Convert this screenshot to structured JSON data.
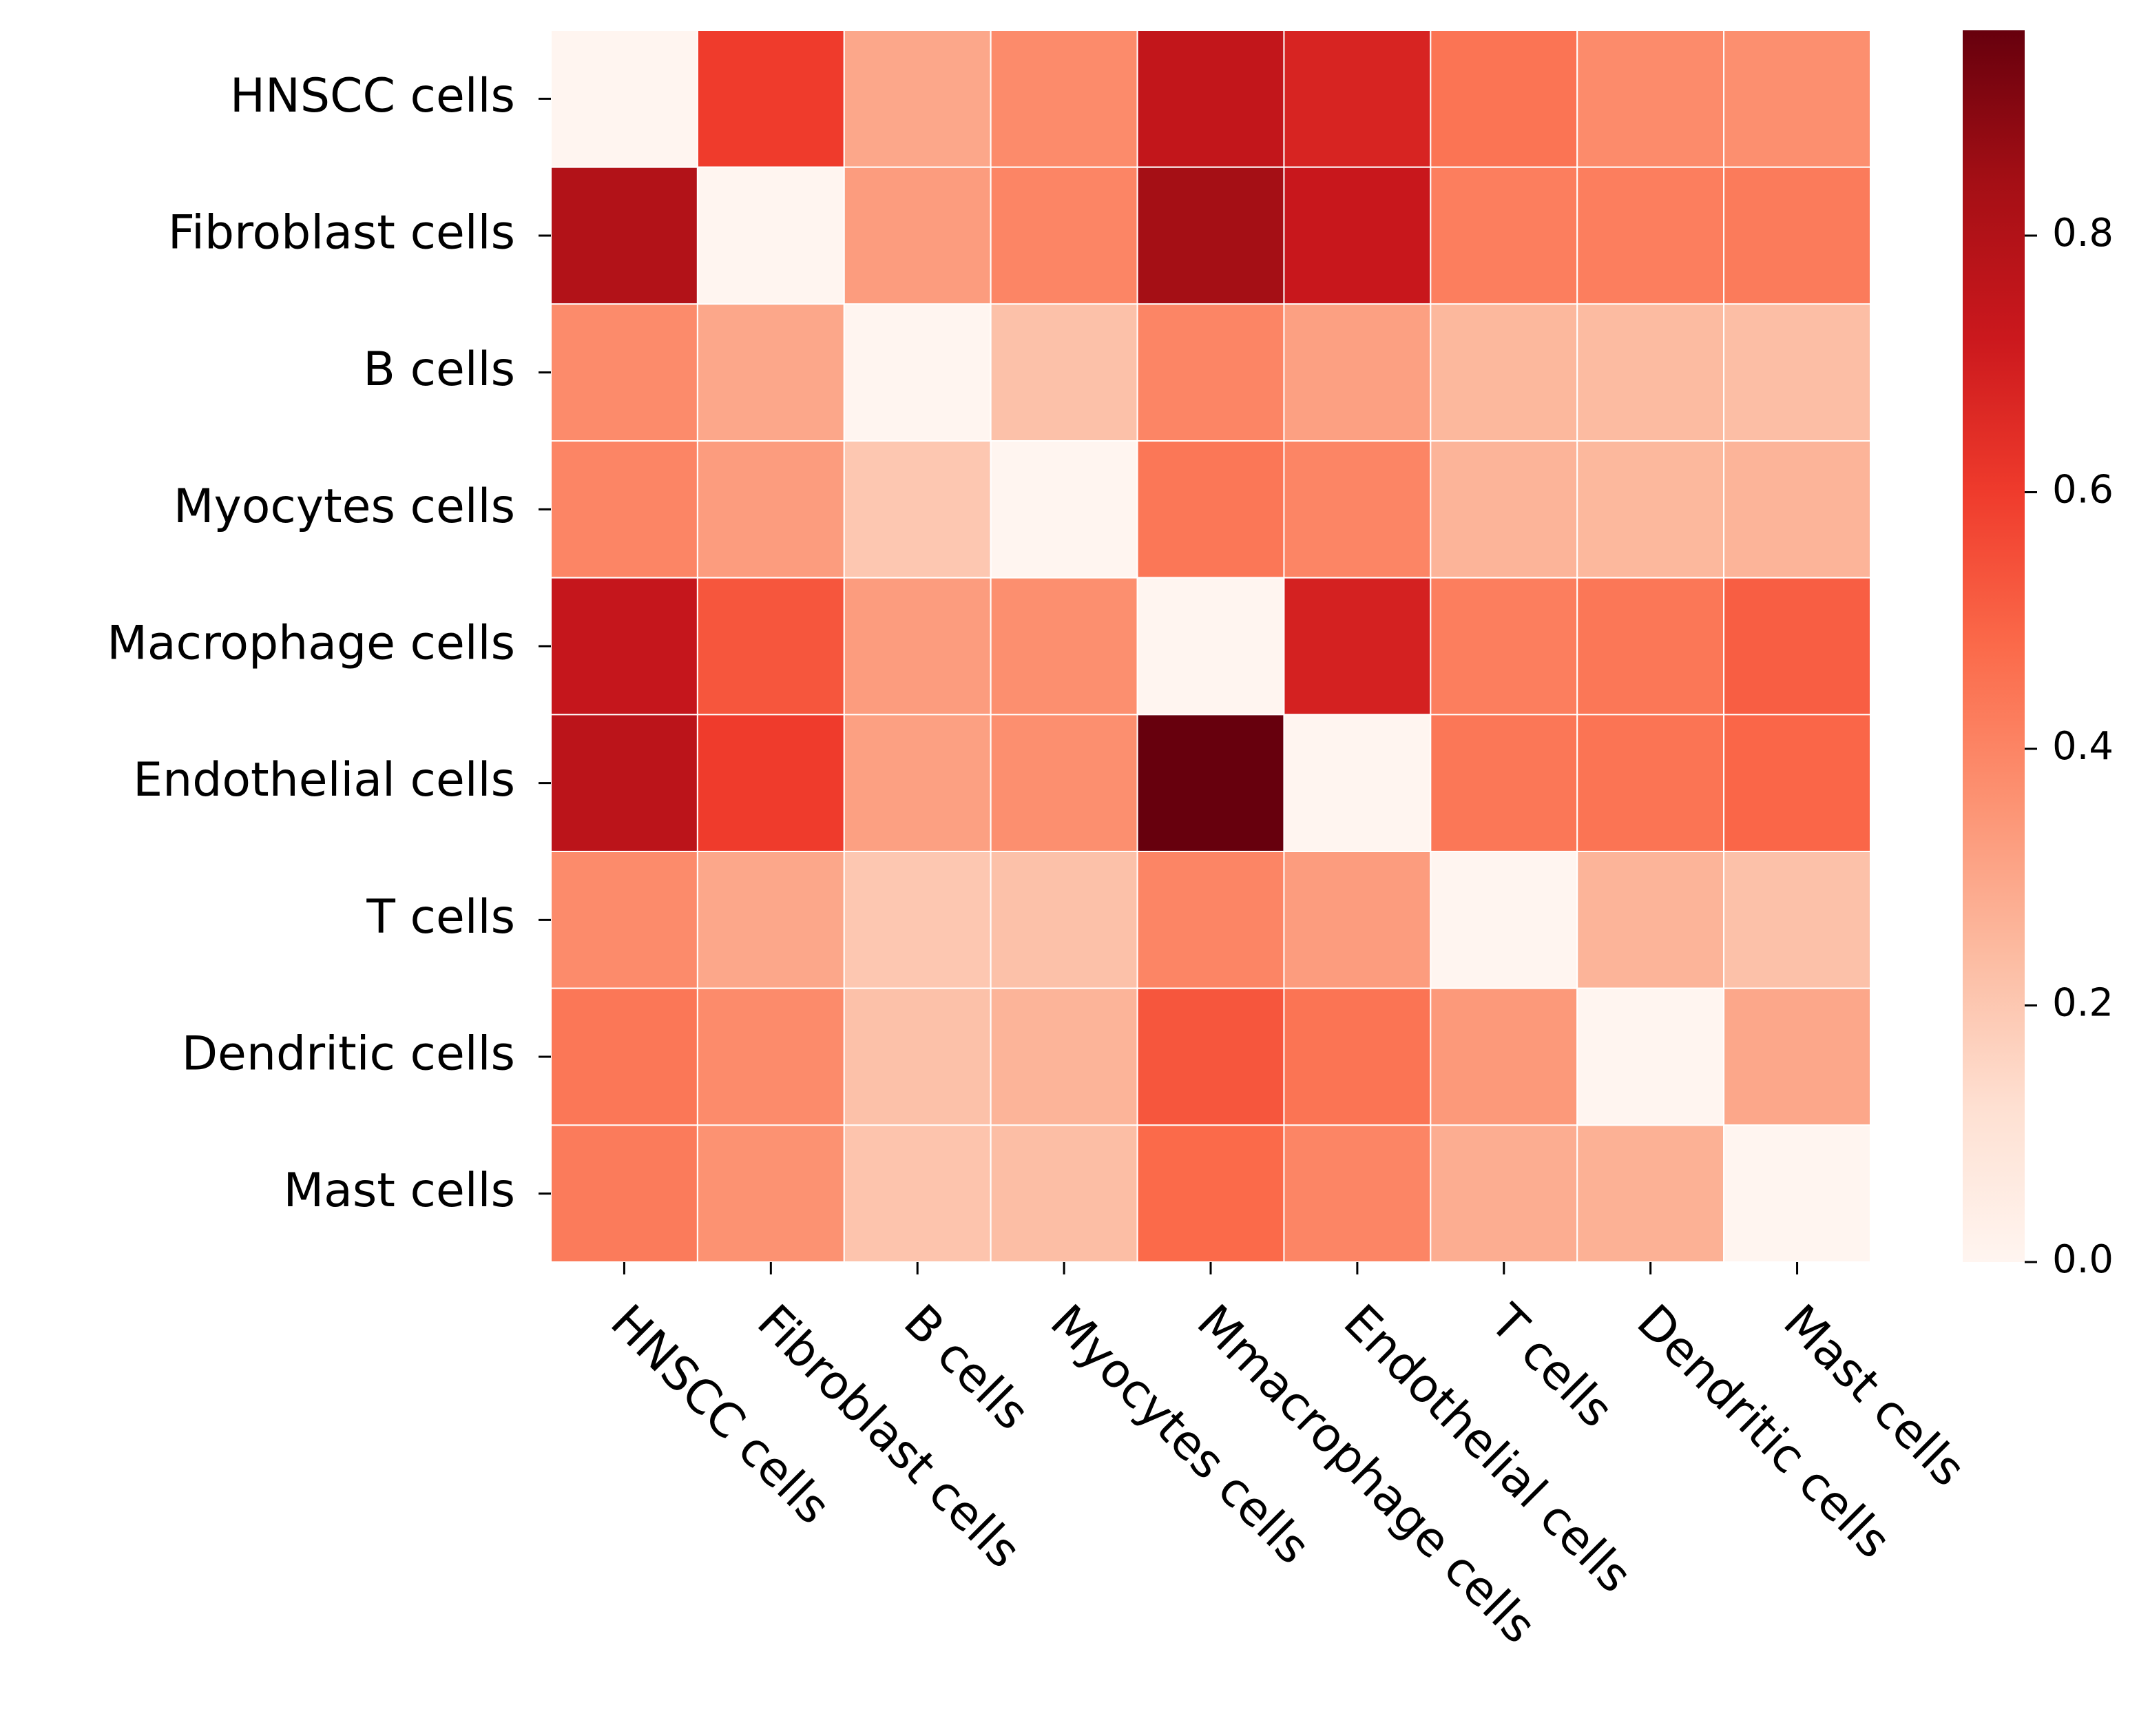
{
  "chart_data": {
    "type": "heatmap",
    "title": "",
    "xlabel": "",
    "ylabel": "",
    "rows": [
      "HNSCC cells",
      "Fibroblast cells",
      "B cells",
      "Myocytes cells",
      "Macrophage cells",
      "Endothelial cells",
      "T cells",
      "Dendritic cells",
      "Mast cells"
    ],
    "columns": [
      "HNSCC cells",
      "Fibroblast cells",
      "B cells",
      "Myocytes cells",
      "Mmacrophage cells",
      "Endothelial cells",
      "T cells",
      "Dendritic cells",
      "Mast cells"
    ],
    "values": [
      [
        0.0,
        0.6,
        0.3,
        0.38,
        0.75,
        0.68,
        0.45,
        0.38,
        0.37
      ],
      [
        0.8,
        0.0,
        0.33,
        0.4,
        0.84,
        0.73,
        0.42,
        0.42,
        0.43
      ],
      [
        0.38,
        0.3,
        0.0,
        0.22,
        0.4,
        0.32,
        0.25,
        0.24,
        0.23
      ],
      [
        0.4,
        0.33,
        0.2,
        0.0,
        0.44,
        0.4,
        0.26,
        0.25,
        0.26
      ],
      [
        0.74,
        0.53,
        0.33,
        0.37,
        0.0,
        0.69,
        0.42,
        0.44,
        0.51
      ],
      [
        0.77,
        0.6,
        0.32,
        0.37,
        0.96,
        0.0,
        0.44,
        0.45,
        0.49
      ],
      [
        0.38,
        0.3,
        0.2,
        0.22,
        0.4,
        0.33,
        0.0,
        0.26,
        0.22
      ],
      [
        0.44,
        0.38,
        0.22,
        0.26,
        0.53,
        0.45,
        0.34,
        0.0,
        0.3
      ],
      [
        0.43,
        0.36,
        0.21,
        0.23,
        0.48,
        0.4,
        0.28,
        0.27,
        0.0
      ]
    ],
    "colorbar": {
      "min": 0.0,
      "max": 0.96,
      "ticks": [
        "0.0",
        "0.2",
        "0.4",
        "0.6",
        "0.8"
      ],
      "tick_values": [
        0.0,
        0.2,
        0.4,
        0.6,
        0.8
      ],
      "colormap": "Reds"
    },
    "grid": true,
    "cell_border_color": "#ffffff"
  }
}
